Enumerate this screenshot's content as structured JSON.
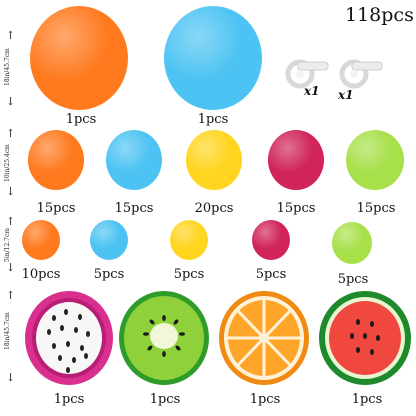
{
  "total_count": "118pcs",
  "size_labels": {
    "row1": "18in/45.7cm",
    "row2": "10in/25.4cm",
    "row3": "5in/12.7cm",
    "row4": "18in/45.7cm"
  },
  "strip_labels": {
    "left": "x1",
    "right": "x1"
  },
  "row1": [
    {
      "name": "orange",
      "color": "#ff7a1f",
      "count": "1pcs"
    },
    {
      "name": "sky-blue",
      "color": "#4cc3f2",
      "count": "1pcs"
    }
  ],
  "row2": [
    {
      "name": "orange",
      "color": "#ff7a1f",
      "count": "15pcs"
    },
    {
      "name": "sky-blue",
      "color": "#4cc3f2",
      "count": "15pcs"
    },
    {
      "name": "yellow",
      "color": "#ffd51f",
      "count": "20pcs"
    },
    {
      "name": "rose-red",
      "color": "#d0245a",
      "count": "15pcs"
    },
    {
      "name": "lime-green",
      "color": "#a8e04a",
      "count": "15pcs"
    }
  ],
  "row3": [
    {
      "name": "orange",
      "color": "#ff7a1f",
      "count": "10pcs"
    },
    {
      "name": "sky-blue",
      "color": "#4cc3f2",
      "count": "5pcs"
    },
    {
      "name": "yellow",
      "color": "#ffd51f",
      "count": "5pcs"
    },
    {
      "name": "rose-red",
      "color": "#d0245a",
      "count": "5pcs"
    },
    {
      "name": "lime-green",
      "color": "#a8e04a",
      "count": "5pcs"
    }
  ],
  "row4": [
    {
      "name": "dragon-fruit-foil",
      "count": "1pcs"
    },
    {
      "name": "kiwi-foil",
      "count": "1pcs"
    },
    {
      "name": "orange-slice-foil",
      "count": "1pcs"
    },
    {
      "name": "watermelon-foil",
      "count": "1pcs"
    }
  ]
}
